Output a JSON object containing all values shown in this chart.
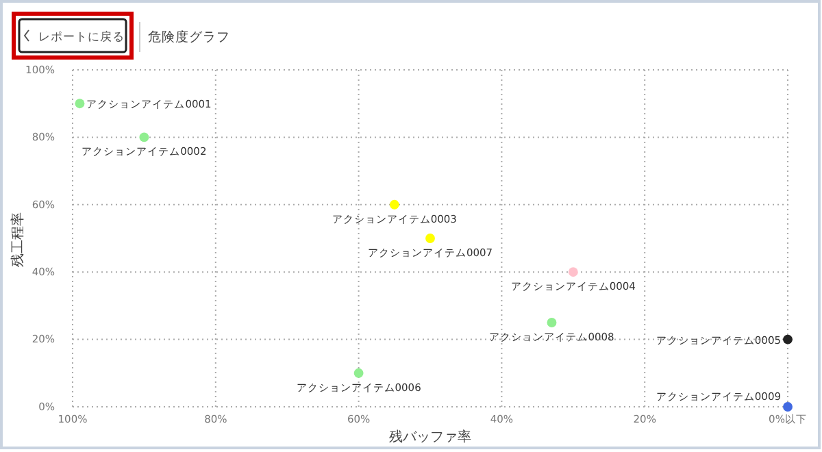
{
  "chart_data": {
    "type": "scatter",
    "title": "危険度グラフ",
    "xlabel": "残バッファ率",
    "ylabel": "残工程率",
    "annotations": [
      "レポートに戻る"
    ],
    "xlim": [
      100,
      0
    ],
    "ylim": [
      0,
      100
    ],
    "xticks": [
      {
        "value": 100,
        "label": "100%"
      },
      {
        "value": 80,
        "label": "80%"
      },
      {
        "value": 60,
        "label": "60%"
      },
      {
        "value": 40,
        "label": "40%"
      },
      {
        "value": 20,
        "label": "20%"
      },
      {
        "value": 0,
        "label": "0%以下"
      }
    ],
    "yticks": [
      {
        "value": 0,
        "label": "0%"
      },
      {
        "value": 20,
        "label": "20%"
      },
      {
        "value": 40,
        "label": "40%"
      },
      {
        "value": 60,
        "label": "60%"
      },
      {
        "value": 80,
        "label": "80%"
      },
      {
        "value": 100,
        "label": "100%"
      }
    ],
    "grid": true,
    "marker": "circle",
    "series": [
      {
        "name": "アクションアイテム0001",
        "color": "#90ee90",
        "x": [
          99
        ],
        "values": [
          90
        ]
      },
      {
        "name": "アクションアイテム0002",
        "color": "#90ee90",
        "x": [
          90
        ],
        "values": [
          80
        ]
      },
      {
        "name": "アクションアイテム0003",
        "color": "#ffff00",
        "x": [
          55
        ],
        "values": [
          60
        ]
      },
      {
        "name": "アクションアイテム0004",
        "color": "#ffc0cb",
        "x": [
          30
        ],
        "values": [
          40
        ]
      },
      {
        "name": "アクションアイテム0005",
        "color": "#222222",
        "x": [
          0
        ],
        "values": [
          20
        ]
      },
      {
        "name": "アクションアイテム0006",
        "color": "#90ee90",
        "x": [
          60
        ],
        "values": [
          10
        ]
      },
      {
        "name": "アクションアイテム0007",
        "color": "#ffff00",
        "x": [
          50
        ],
        "values": [
          50
        ]
      },
      {
        "name": "アクションアイテム0008",
        "color": "#90ee90",
        "x": [
          33
        ],
        "values": [
          25
        ]
      },
      {
        "name": "アクションアイテム0009",
        "color": "#4169e1",
        "x": [
          0
        ],
        "values": [
          0
        ]
      }
    ]
  }
}
